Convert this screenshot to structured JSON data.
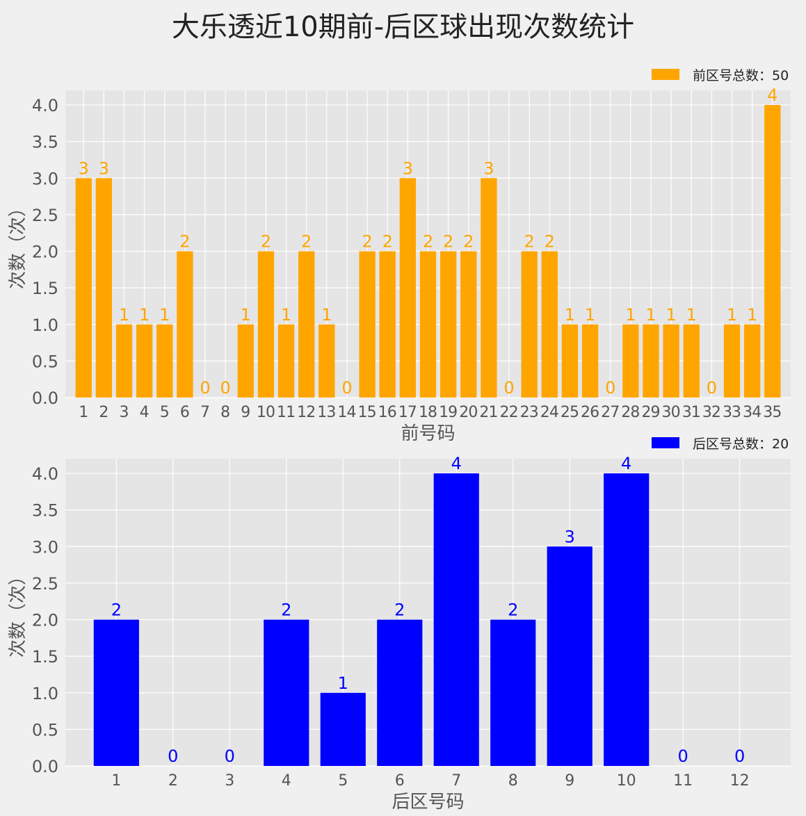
{
  "title": "大乐透近10期前-后区球出现次数统计",
  "chart_data": [
    {
      "type": "bar",
      "name": "front",
      "color": "#FFA500",
      "legend": "前区号总数：50",
      "legend_position": "top-right",
      "xlabel": "前号码",
      "ylabel": "次数（次）",
      "ylim": [
        0,
        4.2
      ],
      "yticks": [
        "0.0",
        "0.5",
        "1.0",
        "1.5",
        "2.0",
        "2.5",
        "3.0",
        "3.5",
        "4.0"
      ],
      "grid": true,
      "categories": [
        "1",
        "2",
        "3",
        "4",
        "5",
        "6",
        "7",
        "8",
        "9",
        "10",
        "11",
        "12",
        "13",
        "14",
        "15",
        "16",
        "17",
        "18",
        "19",
        "20",
        "21",
        "22",
        "23",
        "24",
        "25",
        "26",
        "27",
        "28",
        "29",
        "30",
        "31",
        "32",
        "33",
        "34",
        "35"
      ],
      "values": [
        3,
        3,
        1,
        1,
        1,
        2,
        0,
        0,
        1,
        2,
        1,
        2,
        1,
        0,
        2,
        2,
        3,
        2,
        2,
        2,
        3,
        0,
        2,
        2,
        1,
        1,
        0,
        1,
        1,
        1,
        1,
        0,
        1,
        1,
        4
      ]
    },
    {
      "type": "bar",
      "name": "back",
      "color": "#0000FF",
      "legend": "后区号总数：20",
      "legend_position": "top-right",
      "xlabel": "后区号码",
      "ylabel": "次数（次）",
      "ylim": [
        0,
        4.2
      ],
      "yticks": [
        "0.0",
        "0.5",
        "1.0",
        "1.5",
        "2.0",
        "2.5",
        "3.0",
        "3.5",
        "4.0"
      ],
      "grid": true,
      "categories": [
        "1",
        "2",
        "3",
        "4",
        "5",
        "6",
        "7",
        "8",
        "9",
        "10",
        "11",
        "12"
      ],
      "values": [
        2,
        0,
        0,
        2,
        1,
        2,
        4,
        2,
        3,
        4,
        0,
        0
      ]
    }
  ]
}
